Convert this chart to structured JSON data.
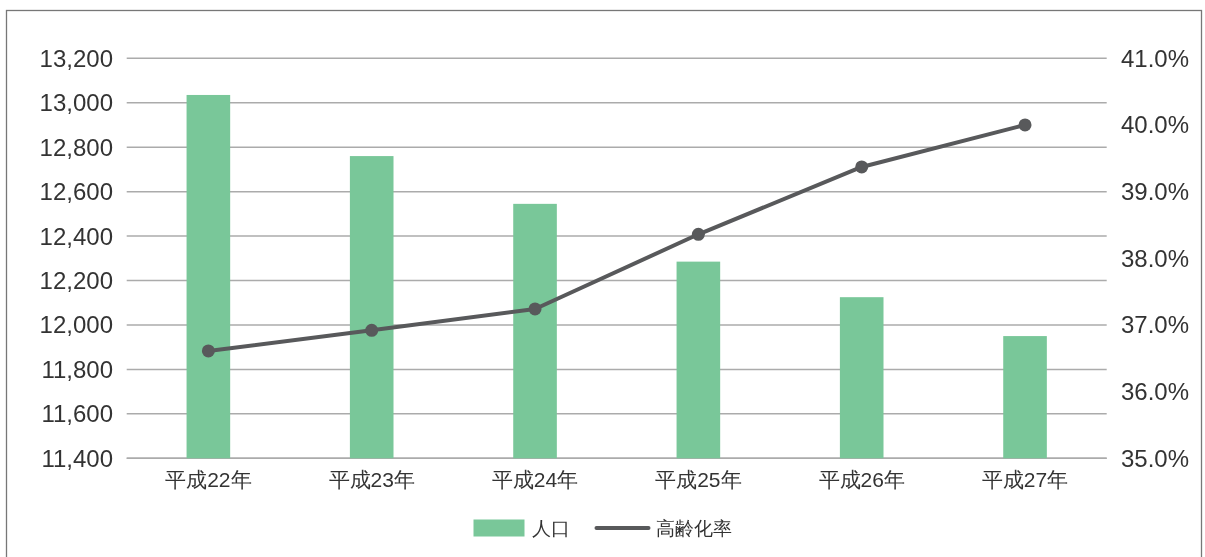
{
  "chart_data": {
    "type": "bar",
    "categories": [
      "平成22年",
      "平成23年",
      "平成24年",
      "平成25年",
      "平成26年",
      "平成27年"
    ],
    "series": [
      {
        "name": "人口",
        "color": "#79c799",
        "values": [
          13035,
          12760,
          12545,
          12285,
          12125,
          11950
        ]
      },
      {
        "name": "高齢化率",
        "type": "line",
        "axis": "y2",
        "color": "#58595b",
        "values": [
          36.61,
          36.92,
          37.24,
          38.36,
          39.37,
          40.0
        ]
      }
    ],
    "ylim": [
      11400,
      13200
    ],
    "yticks": [
      {
        "value": 11400,
        "label": "11,400"
      },
      {
        "value": 11600,
        "label": "11,600"
      },
      {
        "value": 11800,
        "label": "11,800"
      },
      {
        "value": 12000,
        "label": "12,000"
      },
      {
        "value": 12200,
        "label": "12,200"
      },
      {
        "value": 12400,
        "label": "12,400"
      },
      {
        "value": 12600,
        "label": "12,600"
      },
      {
        "value": 12800,
        "label": "12,800"
      },
      {
        "value": 13000,
        "label": "13,000"
      },
      {
        "value": 13200,
        "label": "13,200"
      }
    ],
    "y2lim": [
      35,
      41
    ],
    "y2ticks": [
      {
        "value": 35,
        "label": "35.0%"
      },
      {
        "value": 36,
        "label": "36.0%"
      },
      {
        "value": 37,
        "label": "37.0%"
      },
      {
        "value": 38,
        "label": "38.0%"
      },
      {
        "value": 39,
        "label": "39.0%"
      },
      {
        "value": 40,
        "label": "40.0%"
      },
      {
        "value": 41,
        "label": "41.0%"
      }
    ],
    "grid": "y",
    "legend": "bottom",
    "marker": "circle",
    "line_style": "solid"
  }
}
